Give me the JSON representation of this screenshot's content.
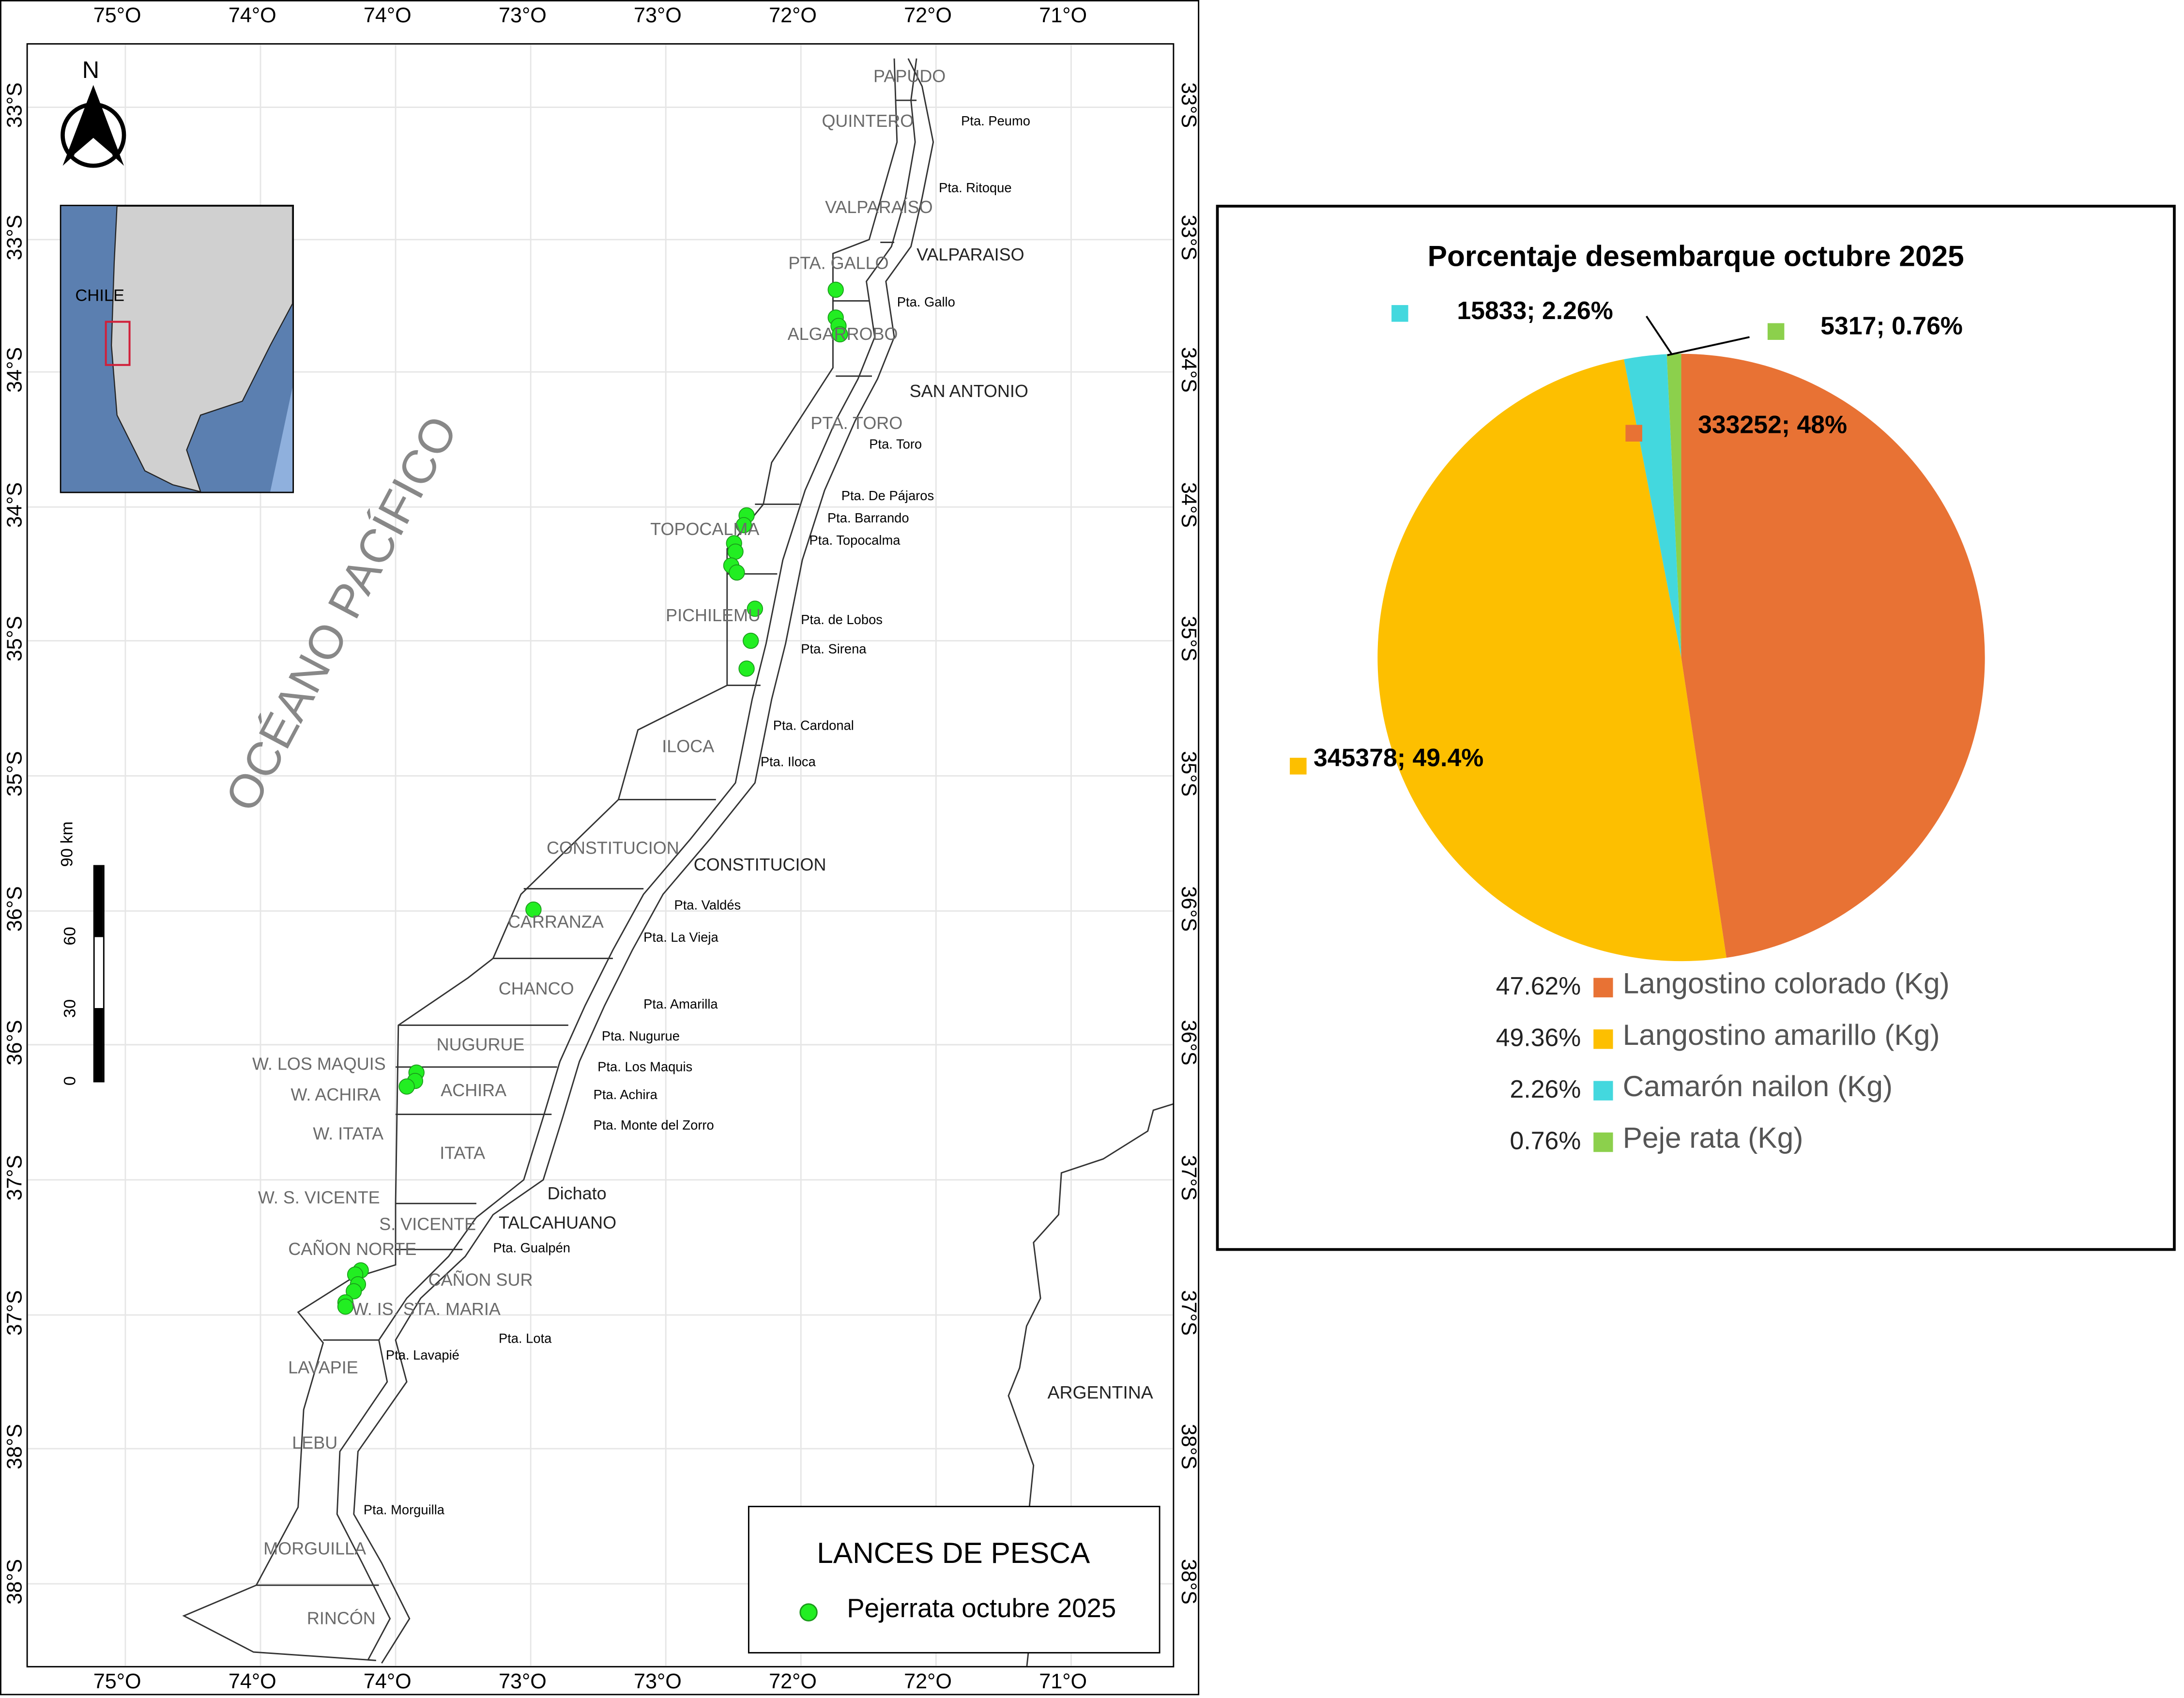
{
  "map": {
    "top_lon_ticks": [
      "75°O",
      "74°O",
      "74°O",
      "73°O",
      "73°O",
      "72°O",
      "72°O",
      "71°O"
    ],
    "bottom_lon_ticks": [
      "75°O",
      "74°O",
      "74°O",
      "73°O",
      "73°O",
      "72°O",
      "72°O",
      "71°O"
    ],
    "left_lat_ticks": [
      "33°S",
      "33°S",
      "34°S",
      "34°S",
      "35°S",
      "35°S",
      "36°S",
      "36°S",
      "37°S",
      "37°S",
      "38°S",
      "38°S"
    ],
    "right_lat_ticks": [
      "33°S",
      "33°S",
      "34°S",
      "34°S",
      "35°S",
      "35°S",
      "36°S",
      "36°S",
      "37°S",
      "37°S",
      "38°S",
      "38°S"
    ],
    "north_label": "N",
    "inset_label": "CHILE",
    "ocean_label": "OCÉANO PACÍFICO",
    "country_label": "ARGENTINA",
    "scale_labels": [
      "0",
      "30",
      "60",
      "90 km"
    ],
    "zones": [
      "PAPUDO",
      "QUINTERO",
      "VALPARAÍSO",
      "PTA. GALLO",
      "ALGARROBO",
      "PTA. TORO",
      "TOPOCALMA",
      "PICHILEMU",
      "ILOCA",
      "CONSTITUCION",
      "CARRANZA",
      "CHANCO",
      "NUGURUE",
      "W. LOS MAQUIS",
      "W. ACHIRA",
      "ACHIRA",
      "W. ITATA",
      "ITATA",
      "W. S. VICENTE",
      "S. VICENTE",
      "CAÑON NORTE",
      "CAÑON SUR",
      "W. IS. STA. MARIA",
      "LAVAPIE",
      "LEBU",
      "MORGUILLA",
      "RINCÓN"
    ],
    "cities": [
      "VALPARAISO",
      "SAN ANTONIO",
      "CONSTITUCION",
      "Dichato",
      "TALCAHUANO"
    ],
    "points_of_interest": [
      "Pta. Peumo",
      "Pta. Ritoque",
      "Pta. Gallo",
      "Pta. Toro",
      "Pta. De Pájaros",
      "Pta. Barrando",
      "Pta. Topocalma",
      "Pta. de Lobos",
      "Pta. Sirena",
      "Pta. Cardonal",
      "Pta. Iloca",
      "Pta. Valdés",
      "Pta. La Vieja",
      "Pta. Amarilla",
      "Pta. Nugurue",
      "Pta. Los Maquis",
      "Pta. Achira",
      "Pta. Monte del Zorro",
      "Pta. Gualpén",
      "Pta. Lota",
      "Pta. Lavapié",
      "Pta. Morguilla"
    ],
    "legend": {
      "title": "LANCES DE PESCA",
      "item": "Pejerrata octubre 2025",
      "point_color": "#22ee22"
    }
  },
  "chart_data": {
    "type": "pie",
    "title": "Porcentaje desembarque octubre 2025",
    "categories": [
      "Langostino colorado (Kg)",
      "Langostino amarillo (Kg)",
      "Camarón nailon (Kg)",
      "Peje rata (Kg)"
    ],
    "values": [
      333252,
      345378,
      15833,
      5317
    ],
    "legend_percents": [
      "47.62%",
      "49.36%",
      "2.26%",
      "0.76%"
    ],
    "data_labels": [
      "333252; 48%",
      "345378; 49.4%",
      "15833; 2.26%",
      "5317; 0.76%"
    ],
    "colors": [
      "#e87234",
      "#fdbf00",
      "#43d8de",
      "#8cd04c"
    ],
    "legend_placement": "bottom"
  }
}
